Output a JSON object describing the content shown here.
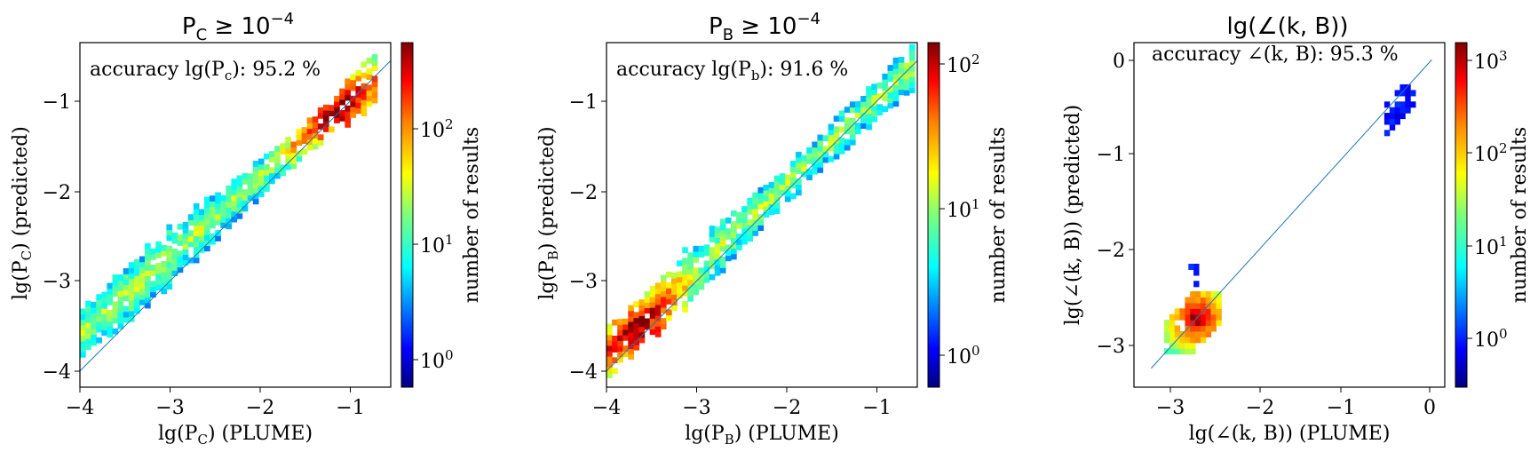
{
  "chart_data": [
    {
      "type": "heatmap",
      "title": "P_C ≥ 10^−4",
      "title_parts": {
        "base": "P",
        "sub": "C",
        "rel": " ≥ 10",
        "sup": "−4"
      },
      "xlabel": "lg(P_C) (PLUME)",
      "xlabel_parts": {
        "pre": "lg(P",
        "sub": "C",
        "post": ") (PLUME)"
      },
      "ylabel": "lg(P_C) (predicted)",
      "ylabel_parts": {
        "pre": "lg(P",
        "sub": "C",
        "post": ") (predicted)"
      },
      "annotation": "accuracy lg(P_c): 95.2 %",
      "annotation_parts": {
        "pre": "accuracy lg(P",
        "sub": "c",
        "post": "): 95.2 %"
      },
      "xlim": [
        -4.0,
        -0.55
      ],
      "ylim": [
        -4.18,
        -0.35
      ],
      "xticks": [
        -4,
        -3,
        -2,
        -1
      ],
      "yticks": [
        -4,
        -3,
        -2,
        -1
      ],
      "diagonal": [
        [
          -4.0,
          -4.0
        ],
        [
          -0.55,
          -0.55
        ]
      ],
      "colorbar": {
        "label": "number of results",
        "scale": "log",
        "range": [
          0.6,
          500
        ],
        "tick_values": [
          1,
          10,
          100
        ],
        "tick_labels": [
          "10^0",
          "10^1",
          "10^2"
        ]
      },
      "density_ridge": {
        "from": [
          -4.0,
          -3.6
        ],
        "to": [
          -0.75,
          -0.75
        ],
        "hot_center": [
          -1.15,
          -1.15
        ]
      }
    },
    {
      "type": "heatmap",
      "title": "P_B ≥ 10^−4",
      "title_parts": {
        "base": "P",
        "sub": "B",
        "rel": " ≥ 10",
        "sup": "−4"
      },
      "xlabel": "lg(P_B) (PLUME)",
      "xlabel_parts": {
        "pre": "lg(P",
        "sub": "B",
        "post": ") (PLUME)"
      },
      "ylabel": "lg(P_B) (predicted)",
      "ylabel_parts": {
        "pre": "lg(P",
        "sub": "B",
        "post": ") (predicted)"
      },
      "annotation": "accuracy lg(P_b): 91.6 %",
      "annotation_parts": {
        "pre": "accuracy lg(P",
        "sub": "b",
        "post": "): 91.6 %"
      },
      "xlim": [
        -4.0,
        -0.55
      ],
      "ylim": [
        -4.18,
        -0.35
      ],
      "xticks": [
        -4,
        -3,
        -2,
        -1
      ],
      "yticks": [
        -4,
        -3,
        -2,
        -1
      ],
      "diagonal": [
        [
          -4.0,
          -4.0
        ],
        [
          -0.55,
          -0.55
        ]
      ],
      "colorbar": {
        "label": "number of results",
        "scale": "log",
        "range": [
          0.6,
          160
        ],
        "tick_values": [
          1,
          10,
          100
        ],
        "tick_labels": [
          "10^0",
          "10^1",
          "10^2"
        ]
      },
      "density_ridge": {
        "from": [
          -4.0,
          -3.8
        ],
        "to": [
          -0.6,
          -0.6
        ],
        "hot_center": [
          -3.6,
          -3.65
        ]
      }
    },
    {
      "type": "heatmap",
      "title": "lg(∠(k, B))",
      "xlabel": "lg(∠(k, B)) (PLUME)",
      "ylabel": "lg(∠(k, B)) (predicted)",
      "annotation": "accuracy ∠(k, B): 95.3 %",
      "xlim": [
        -3.45,
        0.15
      ],
      "ylim": [
        -3.45,
        0.18
      ],
      "xticks": [
        -3,
        -2,
        -1,
        0
      ],
      "yticks": [
        -3,
        -2,
        -1,
        0
      ],
      "diagonal": [
        [
          -3.25,
          -3.25
        ],
        [
          0.0,
          0.0
        ]
      ],
      "colorbar": {
        "label": "number of results",
        "scale": "log",
        "range": [
          0.5,
          1500
        ],
        "tick_values": [
          1,
          10,
          100,
          1000
        ],
        "tick_labels": [
          "10^0",
          "10^1",
          "10^2",
          "10^3"
        ]
      },
      "clusters": [
        {
          "center": [
            -2.75,
            -2.75
          ],
          "extent": "x -3.1 to -2.45, y -3.1 to -2.15",
          "peak": "high"
        },
        {
          "center": [
            -0.4,
            -0.5
          ],
          "extent": "x -0.55 to -0.2, y -0.8 to -0.3",
          "peak": "low"
        }
      ]
    }
  ]
}
